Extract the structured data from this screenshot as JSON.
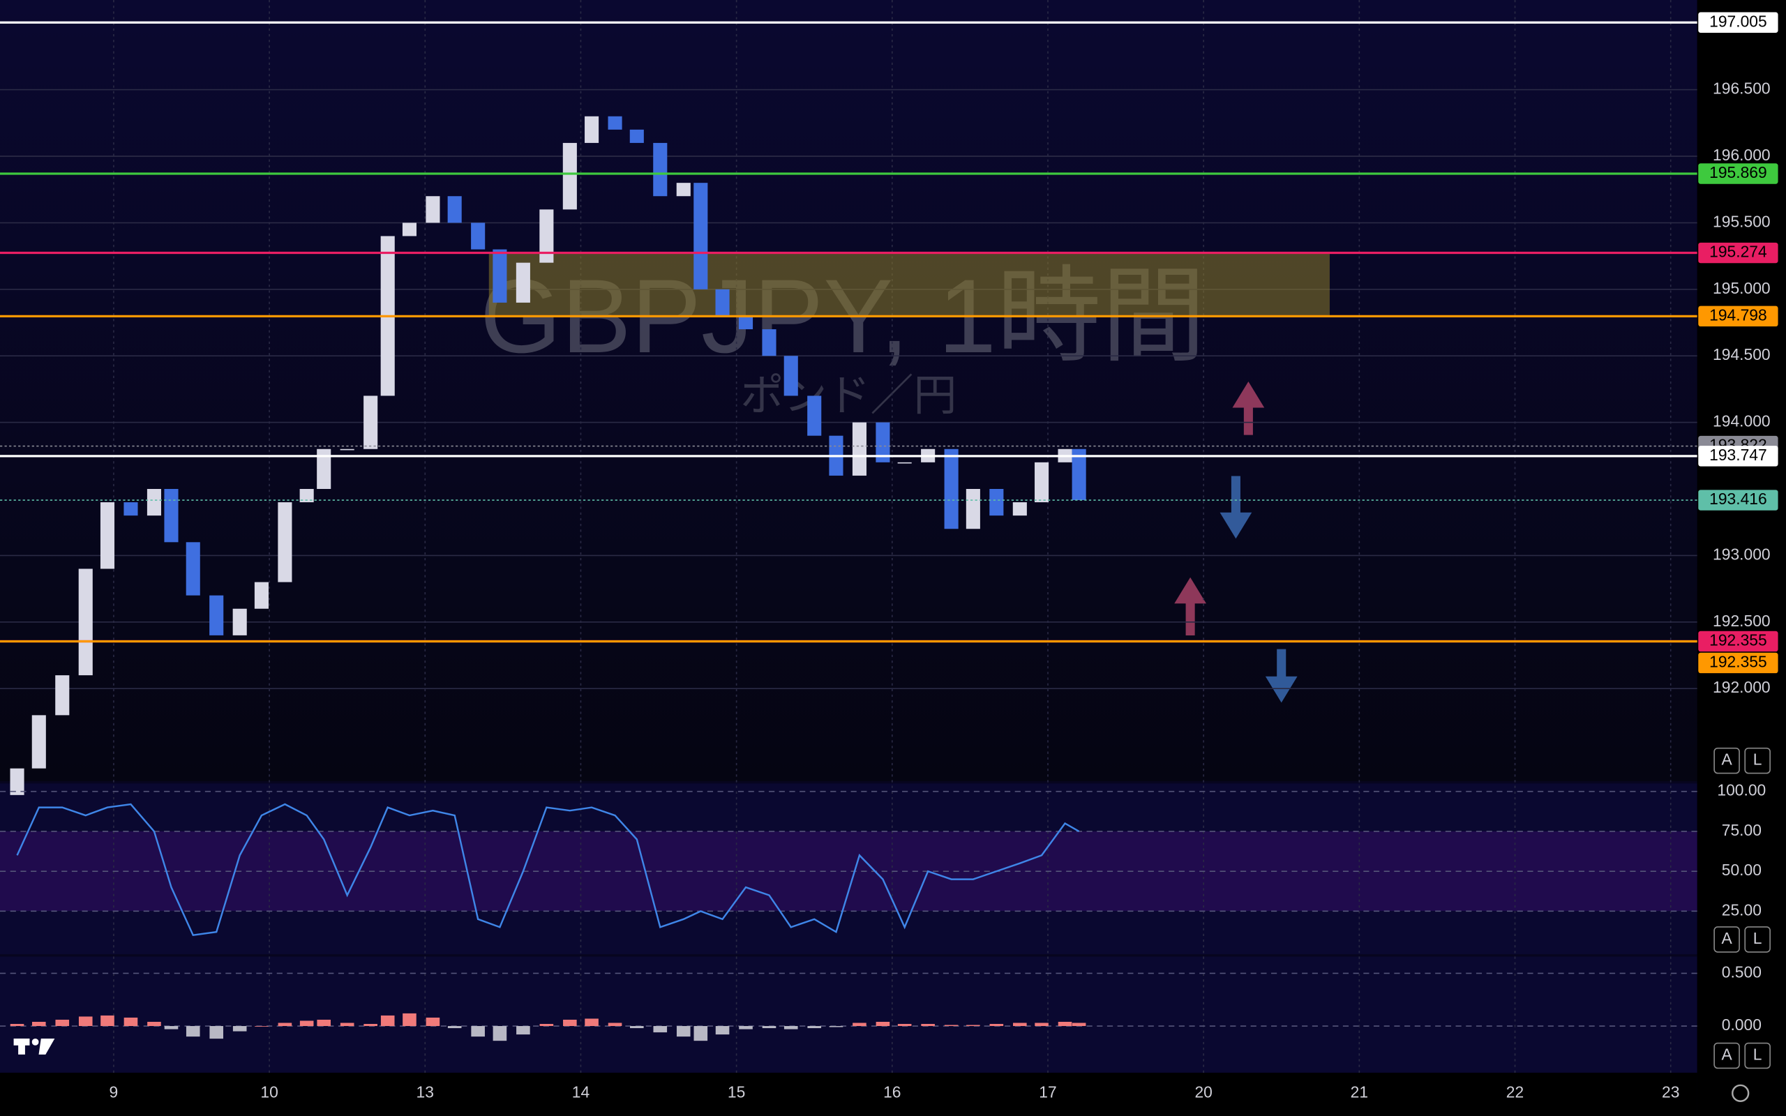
{
  "chart_data": [
    {
      "type": "candlestick",
      "x": [
        -0.62,
        -0.48,
        -0.33,
        -0.18,
        -0.04,
        0.11,
        0.26,
        0.37,
        0.51,
        0.66,
        0.81,
        0.95,
        1.1,
        1.24,
        1.35,
        1.5,
        1.65,
        1.76,
        1.9,
        2.05,
        2.19,
        2.34,
        2.48,
        2.63,
        2.78,
        2.93,
        3.07,
        3.22,
        3.36,
        3.51,
        3.66,
        3.77,
        3.91,
        4.06,
        4.21,
        4.35,
        4.5,
        4.64,
        4.79,
        4.94,
        5.08,
        5.23,
        5.38,
        5.52,
        5.67,
        5.82,
        5.96,
        6.11,
        6.2
      ],
      "open": [
        191.2,
        191.4,
        191.8,
        192.1,
        192.9,
        193.4,
        193.3,
        193.5,
        193.1,
        192.7,
        192.4,
        192.6,
        192.8,
        193.4,
        193.5,
        193.8,
        193.8,
        194.2,
        195.4,
        195.5,
        195.7,
        195.5,
        195.3,
        194.9,
        195.2,
        195.6,
        196.1,
        196.3,
        196.2,
        196.1,
        195.7,
        195.8,
        195.0,
        194.8,
        194.7,
        194.5,
        194.2,
        193.9,
        193.6,
        194.0,
        193.7,
        193.7,
        193.8,
        193.2,
        193.5,
        193.3,
        193.4,
        193.7,
        193.8
      ],
      "close": [
        191.4,
        191.8,
        192.1,
        192.9,
        193.4,
        193.3,
        193.5,
        193.1,
        192.7,
        192.4,
        192.6,
        192.8,
        193.4,
        193.5,
        193.8,
        193.8,
        194.2,
        195.4,
        195.5,
        195.7,
        195.5,
        195.3,
        194.9,
        195.2,
        195.6,
        196.1,
        196.3,
        196.2,
        196.1,
        195.7,
        195.8,
        195.0,
        194.8,
        194.7,
        194.5,
        194.2,
        193.9,
        193.6,
        194.0,
        193.7,
        193.7,
        193.8,
        193.2,
        193.5,
        193.3,
        193.4,
        193.7,
        193.8,
        193.416
      ],
      "up_color": "#d9d9e6",
      "down_color": "#3f6fe0",
      "xlim": [
        -0.73,
        10.17
      ],
      "ylim": [
        191.304,
        197.174
      ],
      "xticks": [
        {
          "value": 0,
          "label": "9"
        },
        {
          "value": 1,
          "label": "10"
        },
        {
          "value": 2,
          "label": "13"
        },
        {
          "value": 3,
          "label": "14"
        },
        {
          "value": 4,
          "label": "15"
        },
        {
          "value": 5,
          "label": "16"
        },
        {
          "value": 6,
          "label": "17"
        },
        {
          "value": 7,
          "label": "20"
        },
        {
          "value": 8,
          "label": "21"
        },
        {
          "value": 9,
          "label": "22"
        },
        {
          "value": 10,
          "label": "23"
        }
      ],
      "yticks": [
        {
          "value": 192,
          "label": "192.000"
        },
        {
          "value": 192.5,
          "label": "192.500"
        },
        {
          "value": 193,
          "label": "193.000"
        },
        {
          "value": 194,
          "label": "194.000"
        },
        {
          "value": 194.5,
          "label": "194.500"
        },
        {
          "value": 195,
          "label": "195.000"
        },
        {
          "value": 195.5,
          "label": "195.500"
        },
        {
          "value": 196,
          "label": "196.000"
        },
        {
          "value": 196.5,
          "label": "196.500"
        }
      ],
      "grid": true,
      "zones": [
        {
          "from": 195.274,
          "to": 194.798,
          "x": [
            2.41,
            7.81
          ],
          "color": "#8a7a2a"
        }
      ],
      "price_lines": [
        {
          "value": 197.005,
          "label": "197.005",
          "color": "#ffffff",
          "style": "solid"
        },
        {
          "value": 195.869,
          "label": "195.869",
          "color": "#3ec93e",
          "style": "solid"
        },
        {
          "value": 195.274,
          "label": "195.274",
          "color": "#e91e63",
          "style": "solid"
        },
        {
          "value": 194.798,
          "label": "194.798",
          "color": "#ff9800",
          "style": "solid"
        },
        {
          "value": 193.822,
          "label": "193.822",
          "color": "#8a8a95",
          "style": "dotted"
        },
        {
          "value": 193.747,
          "label": "193.747",
          "color": "#ffffff",
          "style": "solid"
        },
        {
          "value": 193.416,
          "label": "193.416",
          "color": "#5fbfa8",
          "style": "dotted"
        },
        {
          "value": 192.355,
          "label": "192.355",
          "color": "#e91e63",
          "style": "solid"
        },
        {
          "value": 192.355,
          "label": "192.355",
          "color": "#ff9800",
          "style": "solid"
        }
      ]
    },
    {
      "type": "line",
      "color": "#3f86e8",
      "values": [
        60,
        90,
        90,
        85,
        90,
        92,
        75,
        40,
        10,
        12,
        60,
        85,
        92,
        85,
        70,
        35,
        65,
        90,
        85,
        88,
        85,
        20,
        15,
        50,
        90,
        88,
        90,
        85,
        70,
        15,
        20,
        25,
        20,
        40,
        35,
        15,
        20,
        12,
        60,
        45,
        15,
        50,
        45,
        45,
        50,
        55,
        60,
        80,
        75
      ],
      "ylim": [
        -2,
        105
      ],
      "yticks": [
        {
          "value": 25,
          "label": "25.00"
        },
        {
          "value": 50,
          "label": "50.00"
        },
        {
          "value": 75,
          "label": "75.00"
        },
        {
          "value": 100,
          "label": "100.00"
        }
      ]
    },
    {
      "type": "histogram",
      "pos_color": "#f07a7a",
      "neg_color": "#b8b8c4",
      "values": [
        0.02,
        0.04,
        0.06,
        0.09,
        0.1,
        0.08,
        0.04,
        -0.03,
        -0.1,
        -0.12,
        -0.05,
        0.0,
        0.03,
        0.05,
        0.06,
        0.03,
        0.02,
        0.1,
        0.12,
        0.08,
        -0.02,
        -0.1,
        -0.14,
        -0.08,
        0.02,
        0.06,
        0.07,
        0.03,
        -0.02,
        -0.06,
        -0.1,
        -0.14,
        -0.08,
        -0.03,
        -0.02,
        -0.03,
        -0.02,
        -0.01,
        0.03,
        0.04,
        0.02,
        0.02,
        0.01,
        0.01,
        0.02,
        0.03,
        0.03,
        0.04,
        0.03
      ],
      "ylim": [
        -0.443,
        0.659
      ],
      "yticks": [
        {
          "value": 0,
          "label": "0.000"
        },
        {
          "value": 0.5,
          "label": "0.500"
        }
      ]
    }
  ],
  "watermark": {
    "symbol": "GBPJPY, 1時間",
    "name": "ポンド／円"
  },
  "buttons": [
    "A",
    "L"
  ]
}
